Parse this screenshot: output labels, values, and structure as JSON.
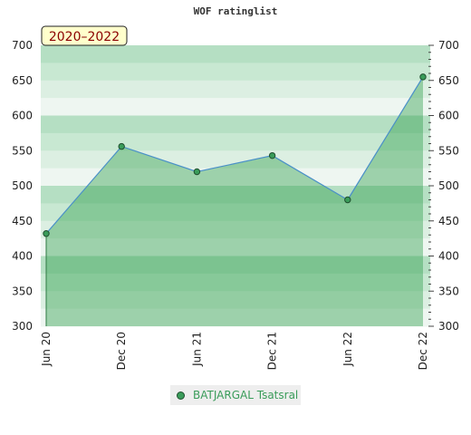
{
  "chart_data": {
    "type": "area",
    "title": "WOF ratinglist",
    "period_label": "2020–2022",
    "x_labels": [
      "Jun 20",
      "Dec 20",
      "Jun 21",
      "Dec 21",
      "Jun 22",
      "Dec 22"
    ],
    "series": [
      {
        "name": "BATJARGAL Tsatsral",
        "values": [
          432,
          556,
          520,
          543,
          480,
          655
        ]
      }
    ],
    "ylim": [
      300,
      700
    ],
    "yticks": [
      300,
      350,
      400,
      450,
      500,
      550,
      600,
      650,
      700
    ],
    "grid": true,
    "legend_position": "bottom-center",
    "colors": {
      "area_fill": "#2e9e4a",
      "line": "#4a90c8",
      "marker": "#3a9c5a",
      "legend_text": "#3a9c5a"
    }
  }
}
